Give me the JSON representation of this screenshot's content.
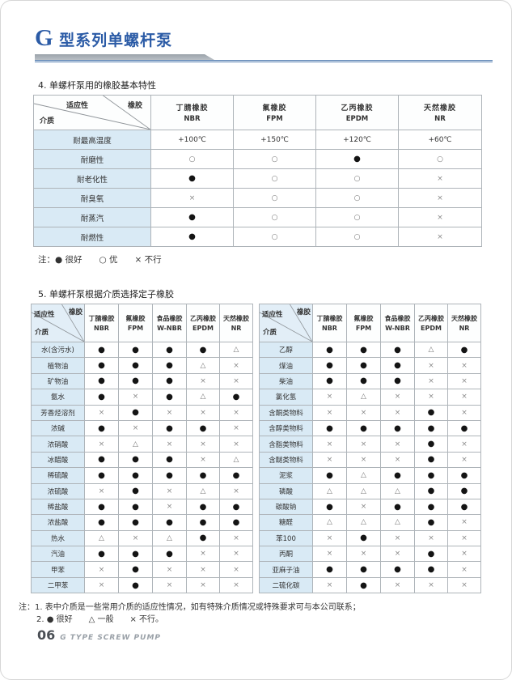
{
  "page": {
    "title_g": "G",
    "title_rest": " 型系列单螺杆泵",
    "footer_num": "06",
    "footer_text": "G TYPE SCREW PUMP"
  },
  "corner_labels": {
    "adaptability": "适应性",
    "rubber": "橡胶",
    "medium": "介质"
  },
  "section4": {
    "title": "4. 单螺杆泵用的橡胶基本特性",
    "legend": "注：●  很好　　○  优　　×  不行",
    "columns": [
      {
        "name": "丁腈橡胶",
        "code": "NBR"
      },
      {
        "name": "氟橡胶",
        "code": "FPM"
      },
      {
        "name": "乙丙橡胶",
        "code": "EPDM"
      },
      {
        "name": "天然橡胶",
        "code": "NR"
      }
    ],
    "rows": [
      {
        "label": "耐最高温度",
        "values": [
          "+100℃",
          "+150℃",
          "+120℃",
          "+60℃"
        ]
      },
      {
        "label": "耐磨性",
        "values": [
          "○",
          "○",
          "●",
          "○"
        ]
      },
      {
        "label": "耐老化性",
        "values": [
          "●",
          "○",
          "○",
          "×"
        ]
      },
      {
        "label": "耐臭氧",
        "values": [
          "×",
          "○",
          "○",
          "×"
        ]
      },
      {
        "label": "耐蒸汽",
        "values": [
          "●",
          "○",
          "○",
          "×"
        ]
      },
      {
        "label": "耐燃性",
        "values": [
          "●",
          "○",
          "○",
          "×"
        ]
      }
    ]
  },
  "section5": {
    "title": "5. 单螺杆泵根据介质选择定子橡胶",
    "note1": "注：1. 表中介质是一些常用介质的适应性情况，如有特殊介质情况或特殊要求可与本公司联系；",
    "note2": "2. ●  很好　　△  一般　　×  不行。",
    "columns": [
      {
        "name": "丁腈橡胶",
        "code": "NBR"
      },
      {
        "name": "氟橡胶",
        "code": "FPM"
      },
      {
        "name": "食品橡胶",
        "code": "W-NBR"
      },
      {
        "name": "乙丙橡胶",
        "code": "EPDM"
      },
      {
        "name": "天然橡胶",
        "code": "NR"
      }
    ],
    "left_rows": [
      {
        "label": "水(含污水)",
        "values": [
          "●",
          "●",
          "●",
          "●",
          "△"
        ]
      },
      {
        "label": "植物油",
        "values": [
          "●",
          "●",
          "●",
          "△",
          "×"
        ]
      },
      {
        "label": "矿物油",
        "values": [
          "●",
          "●",
          "●",
          "×",
          "×"
        ]
      },
      {
        "label": "氨水",
        "values": [
          "●",
          "×",
          "●",
          "△",
          "●"
        ]
      },
      {
        "label": "芳香烃溶剂",
        "values": [
          "×",
          "●",
          "×",
          "×",
          "×"
        ]
      },
      {
        "label": "浓碱",
        "values": [
          "●",
          "×",
          "●",
          "●",
          "×"
        ]
      },
      {
        "label": "浓硝酸",
        "values": [
          "×",
          "△",
          "×",
          "×",
          "×"
        ]
      },
      {
        "label": "冰醋酸",
        "values": [
          "●",
          "●",
          "●",
          "×",
          "△"
        ]
      },
      {
        "label": "稀硫酸",
        "values": [
          "●",
          "●",
          "●",
          "●",
          "●"
        ]
      },
      {
        "label": "浓硫酸",
        "values": [
          "×",
          "●",
          "×",
          "△",
          "×"
        ]
      },
      {
        "label": "稀盐酸",
        "values": [
          "●",
          "●",
          "×",
          "●",
          "●"
        ]
      },
      {
        "label": "浓盐酸",
        "values": [
          "●",
          "●",
          "●",
          "●",
          "●"
        ]
      },
      {
        "label": "热水",
        "values": [
          "△",
          "×",
          "△",
          "●",
          "×"
        ]
      },
      {
        "label": "汽油",
        "values": [
          "●",
          "●",
          "●",
          "×",
          "×"
        ]
      },
      {
        "label": "甲苯",
        "values": [
          "×",
          "●",
          "×",
          "×",
          "×"
        ]
      },
      {
        "label": "二甲苯",
        "values": [
          "×",
          "●",
          "×",
          "×",
          "×"
        ]
      }
    ],
    "right_rows": [
      {
        "label": "乙醇",
        "values": [
          "●",
          "●",
          "●",
          "△",
          "●"
        ]
      },
      {
        "label": "煤油",
        "values": [
          "●",
          "●",
          "●",
          "×",
          "×"
        ]
      },
      {
        "label": "柴油",
        "values": [
          "●",
          "●",
          "●",
          "×",
          "×"
        ]
      },
      {
        "label": "氯化氢",
        "values": [
          "×",
          "△",
          "×",
          "×",
          "×"
        ]
      },
      {
        "label": "含酮类物料",
        "values": [
          "×",
          "×",
          "×",
          "●",
          "×"
        ]
      },
      {
        "label": "含醇类物料",
        "values": [
          "●",
          "●",
          "●",
          "●",
          "●"
        ]
      },
      {
        "label": "含脂类物料",
        "values": [
          "×",
          "×",
          "×",
          "●",
          "×"
        ]
      },
      {
        "label": "含醚类物料",
        "values": [
          "×",
          "×",
          "×",
          "●",
          "×"
        ]
      },
      {
        "label": "泥浆",
        "values": [
          "●",
          "△",
          "●",
          "●",
          "●"
        ]
      },
      {
        "label": "磷酸",
        "values": [
          "△",
          "△",
          "△",
          "●",
          "●"
        ]
      },
      {
        "label": "碳酸钠",
        "values": [
          "●",
          "×",
          "●",
          "●",
          "●"
        ]
      },
      {
        "label": "糖醛",
        "values": [
          "△",
          "△",
          "△",
          "●",
          "×"
        ]
      },
      {
        "label": "苯100",
        "values": [
          "×",
          "●",
          "×",
          "×",
          "×"
        ]
      },
      {
        "label": "丙酮",
        "values": [
          "×",
          "×",
          "×",
          "●",
          "×"
        ]
      },
      {
        "label": "亚麻子油",
        "values": [
          "●",
          "●",
          "●",
          "●",
          "×"
        ]
      },
      {
        "label": "二硫化碳",
        "values": [
          "×",
          "●",
          "×",
          "×",
          "×"
        ]
      }
    ]
  }
}
